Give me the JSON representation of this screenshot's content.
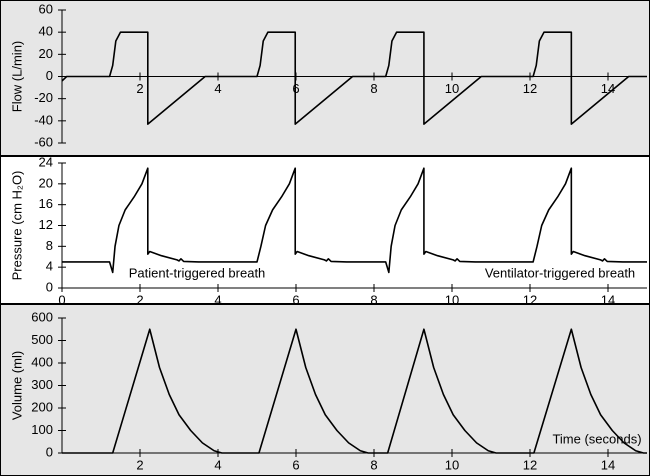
{
  "chart_data": [
    {
      "type": "line",
      "ylabel": "Flow (L/min)",
      "background": "#e6e6e6",
      "color": "#000000",
      "xlim": [
        0,
        15
      ],
      "xticks": [
        2,
        4,
        6,
        8,
        10,
        12,
        14
      ],
      "ylim": [
        -60,
        60
      ],
      "yticks": [
        -60,
        -40,
        -20,
        0,
        20,
        40,
        60
      ],
      "x": [
        0,
        0.12,
        1.22,
        1.3,
        1.38,
        1.5,
        2.2,
        2.2,
        3.67,
        5.0,
        5.08,
        5.16,
        5.28,
        5.98,
        5.98,
        7.45,
        8.3,
        8.38,
        8.46,
        8.58,
        9.28,
        9.28,
        10.75,
        12.08,
        12.16,
        12.24,
        12.36,
        13.06,
        13.06,
        14.53,
        15
      ],
      "values": [
        -4,
        0,
        0,
        10,
        32,
        40,
        40,
        -43,
        0,
        0,
        10,
        32,
        40,
        40,
        -43,
        0,
        0,
        10,
        32,
        40,
        40,
        -43,
        0,
        0,
        10,
        32,
        40,
        40,
        -43,
        0,
        0
      ]
    },
    {
      "type": "line",
      "ylabel": "Pressure (cm H₂O)",
      "background": "#ffffff",
      "color": "#000000",
      "annotations": [
        "Patient-triggered breath",
        "Ventilator-triggered breath"
      ],
      "xlim": [
        0,
        15
      ],
      "xticks": [
        0,
        2,
        4,
        6,
        8,
        10,
        12,
        14
      ],
      "ylim": [
        0,
        24
      ],
      "yticks": [
        0,
        4,
        8,
        12,
        16,
        20,
        24
      ],
      "x": [
        0,
        1.22,
        1.3,
        1.36,
        1.46,
        1.62,
        1.85,
        2.05,
        2.2,
        2.2,
        2.25,
        2.55,
        2.95,
        3.0,
        3.05,
        3.12,
        3.5,
        5.0,
        5.1,
        5.22,
        5.4,
        5.63,
        5.83,
        5.98,
        5.98,
        6.03,
        6.33,
        6.73,
        6.78,
        6.83,
        6.9,
        7.3,
        8.3,
        8.38,
        8.44,
        8.54,
        8.7,
        8.93,
        9.13,
        9.28,
        9.28,
        9.33,
        9.63,
        10.03,
        10.08,
        10.13,
        10.2,
        10.6,
        12.08,
        12.18,
        12.3,
        12.48,
        12.71,
        12.91,
        13.06,
        13.06,
        13.11,
        13.41,
        13.81,
        13.86,
        13.91,
        13.98,
        14.38,
        15
      ],
      "values": [
        5,
        5,
        3,
        8,
        12,
        15,
        17.5,
        20,
        23,
        6.5,
        7,
        6.2,
        5.4,
        5.2,
        5.6,
        5.1,
        5,
        5,
        8,
        12,
        15,
        17.5,
        20,
        23,
        6.5,
        7,
        6.2,
        5.4,
        5.2,
        5.6,
        5.1,
        5,
        5,
        3,
        8,
        12,
        15,
        17.5,
        20,
        23,
        6.5,
        7,
        6.2,
        5.4,
        5.2,
        5.6,
        5.1,
        5,
        5,
        8,
        12,
        15,
        17.5,
        20,
        23,
        6.5,
        7,
        6.2,
        5.4,
        5.2,
        5.6,
        5.1,
        5,
        5
      ]
    },
    {
      "type": "line",
      "ylabel": "Volume (ml)",
      "xlabel": "Time (seconds)",
      "background": "#e6e6e6",
      "color": "#000000",
      "xlim": [
        0,
        15
      ],
      "xticks": [
        2,
        4,
        6,
        8,
        10,
        12,
        14
      ],
      "ylim": [
        0,
        600
      ],
      "yticks": [
        0,
        100,
        200,
        300,
        400,
        500,
        600
      ],
      "x": [
        0,
        1.3,
        2.25,
        2.5,
        2.75,
        3.0,
        3.3,
        3.6,
        3.9,
        4.1,
        5.05,
        6.0,
        6.25,
        6.5,
        6.75,
        7.05,
        7.35,
        7.65,
        7.85,
        8.35,
        9.28,
        9.53,
        9.78,
        10.03,
        10.33,
        10.63,
        10.93,
        11.13,
        12.1,
        13.06,
        13.31,
        13.56,
        13.81,
        14.11,
        14.41,
        14.71,
        14.91,
        15
      ],
      "values": [
        0,
        0,
        550,
        380,
        260,
        170,
        100,
        45,
        10,
        0,
        0,
        550,
        380,
        260,
        170,
        100,
        45,
        10,
        0,
        0,
        550,
        380,
        260,
        170,
        100,
        45,
        10,
        0,
        0,
        550,
        380,
        260,
        170,
        100,
        45,
        10,
        0,
        0
      ]
    }
  ]
}
